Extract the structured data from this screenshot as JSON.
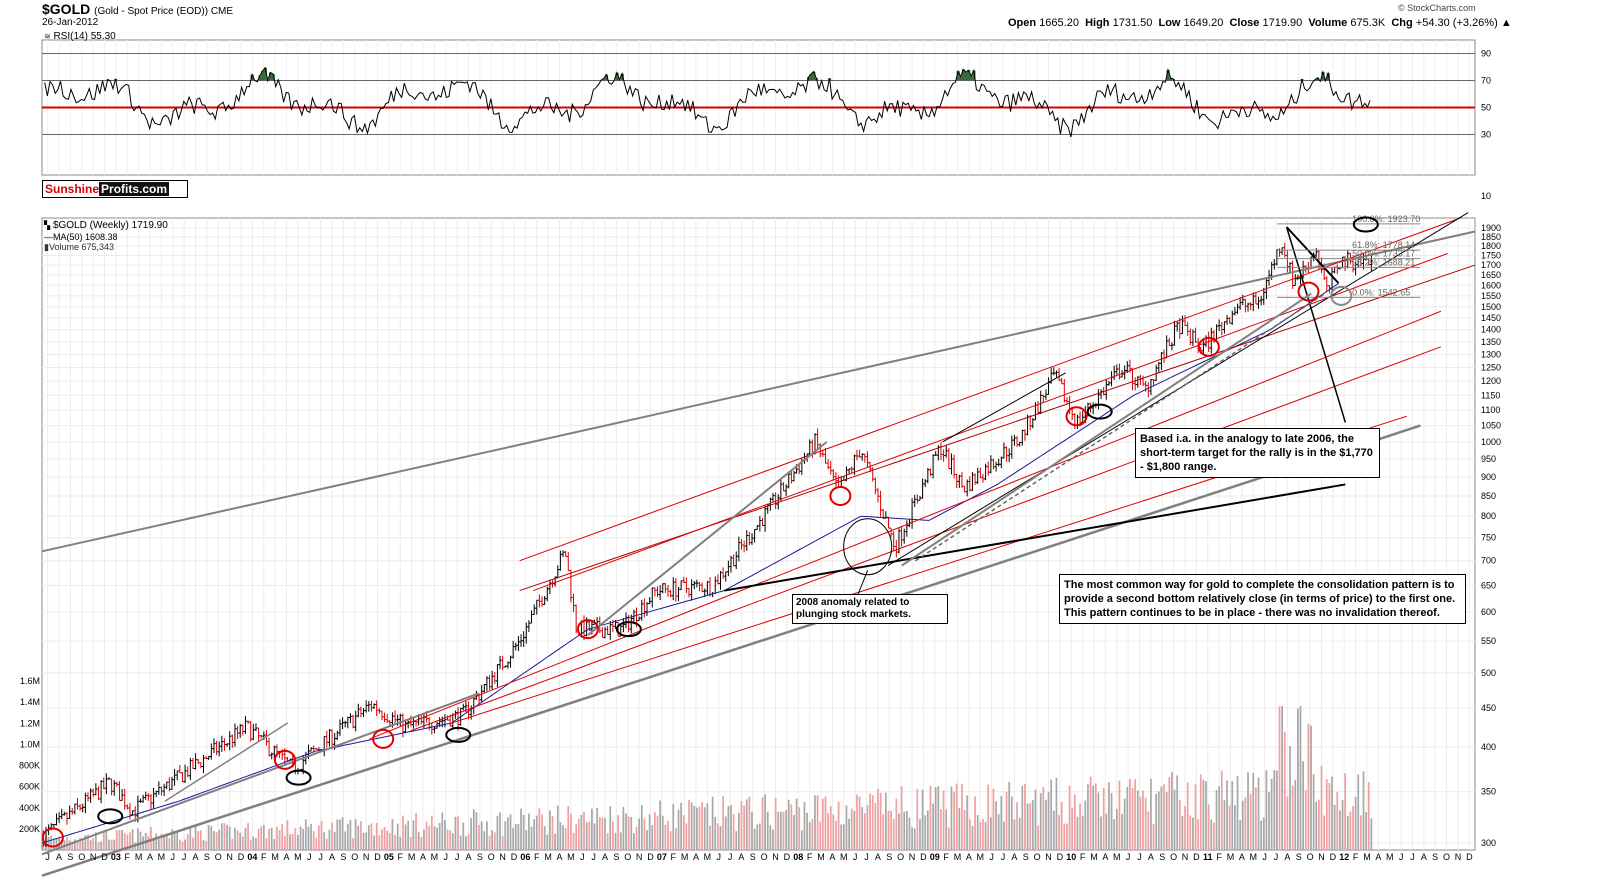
{
  "header": {
    "symbol": "$GOLD",
    "subtitle": "(Gold - Spot Price (EOD)) CME",
    "date": "26-Jan-2012",
    "open_label": "Open",
    "open": "1665.20",
    "high_label": "High",
    "high": "1731.50",
    "low_label": "Low",
    "low": "1649.20",
    "close_label": "Close",
    "close": "1719.90",
    "volume_label": "Volume",
    "volume": "675.3K",
    "chg_label": "Chg",
    "chg": "+54.30 (+3.26%)",
    "copyright": "© StockCharts.com"
  },
  "rsi_panel": {
    "label": "RSI(14) 55.30"
  },
  "brand": {
    "part1": "Sunshine",
    "part2": "Profits.com"
  },
  "legend": {
    "price": "$GOLD (Weekly) 1719.90",
    "ma": "MA(50) 1608.38",
    "volume": "Volume 675,343"
  },
  "annotations": {
    "target_note": "Based i.a. in the analogy to late 2006, the short-term target for the rally is in the $1,770 - $1,800 range.",
    "anomaly_note": "2008 anomaly related to plunging stock markets.",
    "consolidation_note": "The most common way for gold to complete the consolidation pattern is to provide a second bottom relatively close (in terms of price) to the first one. This pattern continues to be in place - there was no invalidation thereof."
  },
  "fibonacci": [
    {
      "label": "100.0%: 1923.70",
      "value": 1923.7
    },
    {
      "label": "61.8%: 1778.14",
      "value": 1778.14
    },
    {
      "label": "50.0%: 1733.17",
      "value": 1733.17
    },
    {
      "label": "38.2%: 1688.21",
      "value": 1688.21
    },
    {
      "label": "0.0%: 1542.65",
      "value": 1542.65
    }
  ],
  "colors": {
    "up_bar": "#000000",
    "down_bar": "#d40000",
    "ma_line": "#1a1a9a",
    "rsi_overbought_fill": "#3b6b3b",
    "rsi_midline": "#d40000",
    "trend_red": "#e00000",
    "trend_gray": "#808080",
    "trend_black": "#000000",
    "volume_up": "#a8a8a8",
    "volume_down": "#f0a0a0"
  },
  "chart_data": {
    "type": "line",
    "title": "$GOLD (Gold - Spot Price (EOD)) CME",
    "scale": "log",
    "ylim": [
      300,
      1950
    ],
    "rsi_ylim": [
      0,
      100
    ],
    "volume_ylim": [
      0,
      1800000
    ],
    "price_ticks": [
      "300",
      "350",
      "400",
      "450",
      "500",
      "550",
      "600",
      "650",
      "700",
      "750",
      "800",
      "850",
      "900",
      "950",
      "1000",
      "1050",
      "1100",
      "1150",
      "1200",
      "1250",
      "1300",
      "1350",
      "1400",
      "1450",
      "1500",
      "1550",
      "1600",
      "1650",
      "1700",
      "1750",
      "1800",
      "1850",
      "1900"
    ],
    "rsi_ticks": [
      "30",
      "50",
      "70",
      "90"
    ],
    "rsi_ticks_extra": [
      "10"
    ],
    "volume_ticks": [
      "200K",
      "400K",
      "600K",
      "800K",
      "1.0M",
      "1.2M",
      "1.4M",
      "1.6M"
    ],
    "x_tick_labels": [
      "J",
      "A",
      "S",
      "O",
      "N",
      "D",
      "03",
      "F",
      "M",
      "A",
      "M",
      "J",
      "J",
      "A",
      "S",
      "O",
      "N",
      "D",
      "04",
      "F",
      "M",
      "A",
      "M",
      "J",
      "J",
      "A",
      "S",
      "O",
      "N",
      "D",
      "05",
      "F",
      "M",
      "A",
      "M",
      "J",
      "J",
      "A",
      "S",
      "O",
      "N",
      "D",
      "06",
      "F",
      "M",
      "A",
      "M",
      "J",
      "J",
      "A",
      "S",
      "O",
      "N",
      "D",
      "07",
      "F",
      "M",
      "A",
      "M",
      "J",
      "J",
      "A",
      "S",
      "O",
      "N",
      "D",
      "08",
      "F",
      "M",
      "A",
      "M",
      "J",
      "J",
      "A",
      "S",
      "O",
      "N",
      "D",
      "09",
      "F",
      "M",
      "A",
      "M",
      "J",
      "J",
      "A",
      "S",
      "O",
      "N",
      "D",
      "10",
      "F",
      "M",
      "A",
      "M",
      "J",
      "J",
      "A",
      "S",
      "O",
      "N",
      "D",
      "11",
      "F",
      "M",
      "A",
      "M",
      "J",
      "J",
      "A",
      "S",
      "O",
      "N",
      "D",
      "12",
      "F",
      "M",
      "A",
      "M",
      "J",
      "J",
      "A",
      "S",
      "O",
      "N",
      "D"
    ],
    "series": [
      {
        "name": "$GOLD (Weekly)",
        "x": [
          "2002-07",
          "2003-01",
          "2003-03",
          "2004-01",
          "2004-05",
          "2004-12",
          "2005-03",
          "2005-08",
          "2006-01",
          "2006-05",
          "2006-06",
          "2006-10",
          "2007-01",
          "2007-06",
          "2007-11",
          "2008-03",
          "2008-05",
          "2008-07",
          "2008-10",
          "2009-02",
          "2009-04",
          "2009-09",
          "2009-12",
          "2010-02",
          "2010-06",
          "2010-08",
          "2010-11",
          "2011-01",
          "2011-04",
          "2011-06",
          "2011-08",
          "2011-09",
          "2011-10",
          "2011-11",
          "2011-12",
          "2012-01"
        ],
        "values": [
          305,
          360,
          330,
          425,
          375,
          455,
          425,
          440,
          550,
          720,
          570,
          570,
          640,
          650,
          820,
          1000,
          860,
          980,
          730,
          985,
          870,
          1010,
          1220,
          1060,
          1250,
          1170,
          1420,
          1320,
          1500,
          1520,
          1830,
          1620,
          1680,
          1790,
          1560,
          1719.9
        ]
      },
      {
        "name": "MA(50)",
        "x": [
          "2002-07",
          "2003-07",
          "2004-07",
          "2005-07",
          "2006-07",
          "2007-07",
          "2008-07",
          "2009-01",
          "2009-07",
          "2010-07",
          "2011-07",
          "2012-01"
        ],
        "values": [
          300,
          340,
          395,
          430,
          570,
          640,
          800,
          790,
          880,
          1150,
          1400,
          1608.38
        ]
      }
    ],
    "rsi": {
      "name": "RSI(14)",
      "last": 55.3,
      "overbought": 70,
      "midline": 50,
      "oversold": 30
    }
  }
}
